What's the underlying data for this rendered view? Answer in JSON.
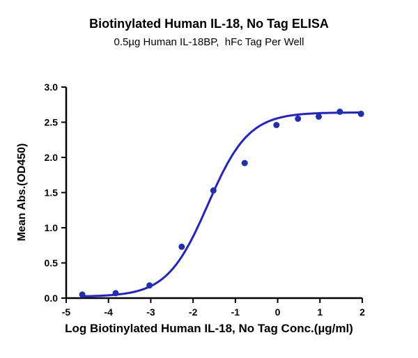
{
  "chart_data": {
    "type": "scatter",
    "title": "Biotinylated Human IL-18, No Tag ELISA",
    "subtitle": "0.5µg Human IL-18BP,  hFc Tag Per Well",
    "xlabel": "Log Biotinylated Human IL-18, No Tag Conc.(µg/ml)",
    "ylabel": "Mean Abs.(OD450)",
    "xlim": [
      -5,
      2
    ],
    "ylim": [
      0,
      3
    ],
    "x_ticks": [
      -5,
      -4,
      -3,
      -2,
      -1,
      0,
      1,
      2
    ],
    "x_tick_labels": [
      "-5",
      "-4",
      "-3",
      "-2",
      "-1",
      "0",
      "1",
      "2"
    ],
    "y_ticks": [
      0.0,
      0.5,
      1.0,
      1.5,
      2.0,
      2.5,
      3.0
    ],
    "y_tick_labels": [
      "0.0",
      "0.5",
      "1.0",
      "1.5",
      "2.0",
      "2.5",
      "3.0"
    ],
    "grid": false,
    "legend": false,
    "series": [
      {
        "name": "Mean Abs.(OD450)",
        "x": [
          -4.62,
          -3.83,
          -3.03,
          -2.27,
          -1.52,
          -0.78,
          -0.03,
          0.48,
          0.97,
          1.47,
          1.97
        ],
        "y": [
          0.05,
          0.07,
          0.18,
          0.73,
          1.53,
          1.92,
          2.46,
          2.55,
          2.58,
          2.65,
          2.62
        ]
      }
    ],
    "curve_fit": {
      "model": "4PL sigmoidal dose-response",
      "bottom": 0.02,
      "top": 2.64,
      "log_ec50": -1.65,
      "hill_slope": 0.9,
      "x_range": [
        -4.62,
        1.97
      ]
    },
    "colors": {
      "curve": "#2222cc",
      "point": "#1f2fb4",
      "axis": "#000000"
    }
  }
}
